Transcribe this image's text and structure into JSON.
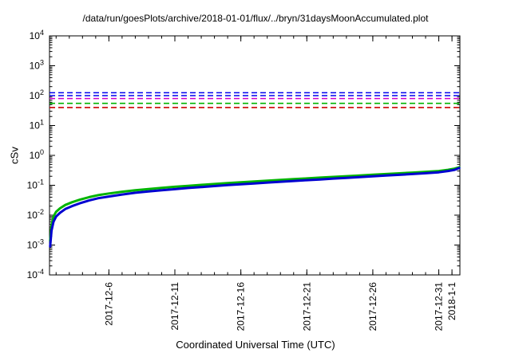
{
  "chart_data": {
    "type": "line",
    "title": "/data/run/goesPlots/archive/2018-01-01/flux/../bryn/31daysMoonAccumulated.plot",
    "xlabel": "Coordinated Universal Time (UTC)",
    "ylabel": "cSv",
    "x_axis": {
      "start_date": "2017-12-01",
      "end_date": "2018-01-01",
      "xlim_days": [
        0.5,
        31.6
      ],
      "minor_tick_every_days": 1,
      "major_ticks": [
        {
          "day": 5,
          "label": "2017-12-6"
        },
        {
          "day": 10,
          "label": "2017-12-11"
        },
        {
          "day": 15,
          "label": "2017-12-16"
        },
        {
          "day": 20,
          "label": "2017-12-21"
        },
        {
          "day": 25,
          "label": "2017-12-26"
        },
        {
          "day": 30,
          "label": "2017-12-31"
        },
        {
          "day": 31,
          "label": "2018-1-1"
        }
      ]
    },
    "y_axis": {
      "scale": "log10",
      "exponent_range": [
        -4,
        4
      ],
      "tick_label_format": "10^n"
    },
    "thresholds": [
      {
        "name": "threshold-blue-upper",
        "value": 125,
        "color": "#0000ee"
      },
      {
        "name": "threshold-blue-lower",
        "value": 100,
        "color": "#0000ee"
      },
      {
        "name": "threshold-magenta",
        "value": 80,
        "color": "#cc00cc"
      },
      {
        "name": "threshold-green",
        "value": 55,
        "color": "#00b400"
      },
      {
        "name": "threshold-red",
        "value": 40,
        "color": "#cc0000"
      }
    ],
    "x_days": [
      0.55,
      0.65,
      0.8,
      1.0,
      1.3,
      1.7,
      2.2,
      2.8,
      3.5,
      4.2,
      5,
      6,
      7,
      8,
      9,
      10,
      11,
      12,
      13,
      14,
      15,
      16,
      17,
      18,
      19,
      20,
      21,
      22,
      23,
      24,
      25,
      26,
      27,
      28,
      29,
      30,
      30.7,
      31.2,
      31.55
    ],
    "series": [
      {
        "name": "accumulated-dose-green",
        "color": "#00b400",
        "values": [
          0.0014,
          0.0045,
          0.009,
          0.013,
          0.017,
          0.022,
          0.027,
          0.033,
          0.04,
          0.047,
          0.053,
          0.061,
          0.068,
          0.075,
          0.082,
          0.089,
          0.096,
          0.103,
          0.11,
          0.118,
          0.126,
          0.134,
          0.142,
          0.151,
          0.16,
          0.17,
          0.18,
          0.19,
          0.201,
          0.213,
          0.225,
          0.238,
          0.251,
          0.266,
          0.282,
          0.301,
          0.33,
          0.36,
          0.4
        ]
      },
      {
        "name": "accumulated-dose-blue",
        "color": "#0000d0",
        "values": [
          0.0009,
          0.003,
          0.006,
          0.009,
          0.012,
          0.016,
          0.02,
          0.025,
          0.031,
          0.037,
          0.042,
          0.049,
          0.056,
          0.062,
          0.068,
          0.074,
          0.081,
          0.087,
          0.094,
          0.101,
          0.108,
          0.115,
          0.123,
          0.131,
          0.139,
          0.148,
          0.157,
          0.167,
          0.177,
          0.188,
          0.199,
          0.211,
          0.224,
          0.238,
          0.253,
          0.272,
          0.3,
          0.33,
          0.38
        ]
      }
    ]
  }
}
